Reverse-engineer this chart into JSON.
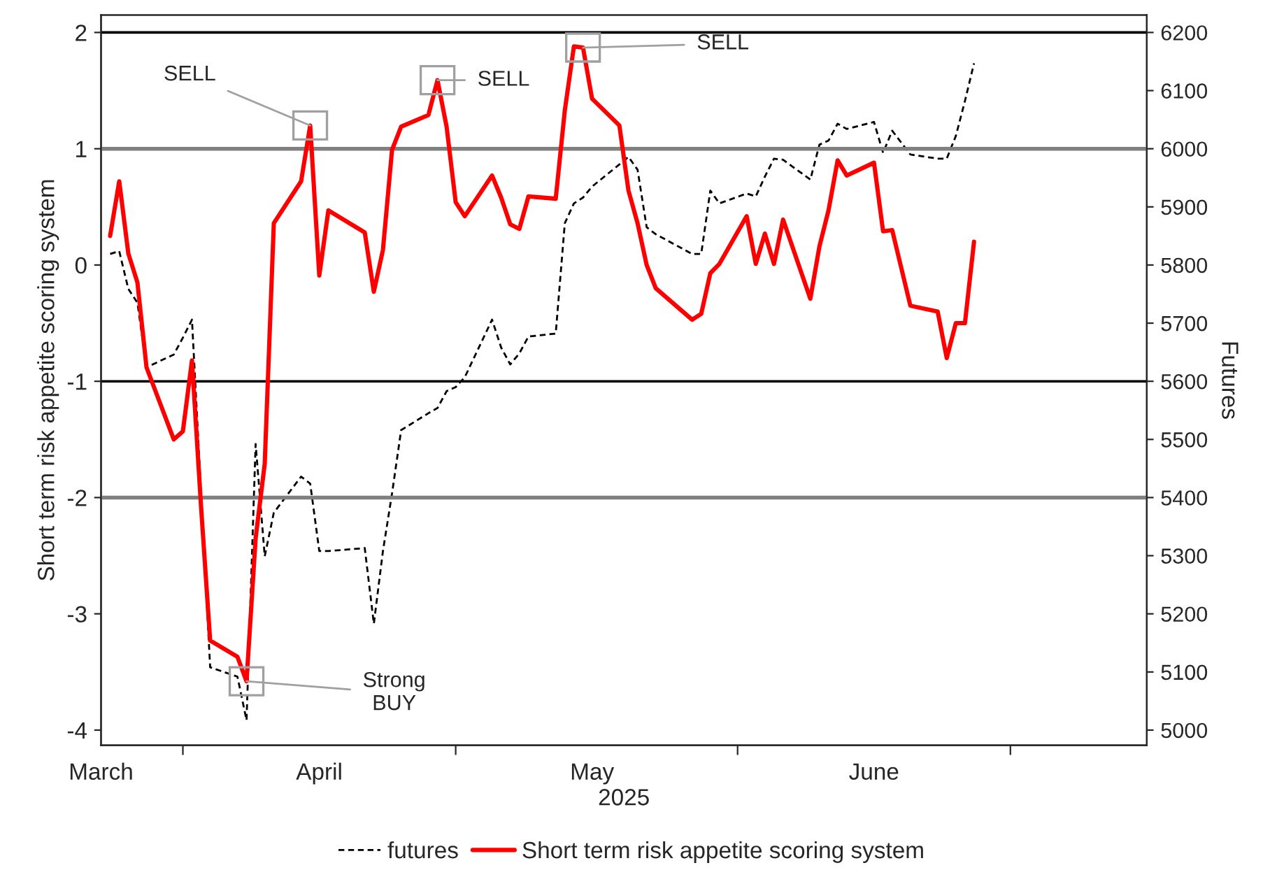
{
  "chart_data": {
    "type": "line",
    "x": [
      "2025-03-24",
      "2025-03-25",
      "2025-03-26",
      "2025-03-27",
      "2025-03-28",
      "2025-03-31",
      "2025-04-01",
      "2025-04-02",
      "2025-04-03",
      "2025-04-04",
      "2025-04-07",
      "2025-04-08",
      "2025-04-09",
      "2025-04-10",
      "2025-04-11",
      "2025-04-14",
      "2025-04-15",
      "2025-04-16",
      "2025-04-17",
      "2025-04-21",
      "2025-04-22",
      "2025-04-23",
      "2025-04-24",
      "2025-04-25",
      "2025-04-28",
      "2025-04-29",
      "2025-04-30",
      "2025-05-01",
      "2025-05-02",
      "2025-05-05",
      "2025-05-06",
      "2025-05-07",
      "2025-05-08",
      "2025-05-09",
      "2025-05-12",
      "2025-05-13",
      "2025-05-14",
      "2025-05-15",
      "2025-05-16",
      "2025-05-19",
      "2025-05-20",
      "2025-05-21",
      "2025-05-22",
      "2025-05-23",
      "2025-05-27",
      "2025-05-28",
      "2025-05-29",
      "2025-05-30",
      "2025-06-02",
      "2025-06-03",
      "2025-06-04",
      "2025-06-05",
      "2025-06-06",
      "2025-06-09",
      "2025-06-10",
      "2025-06-11",
      "2025-06-12",
      "2025-06-13",
      "2025-06-16",
      "2025-06-17",
      "2025-06-18",
      "2025-06-20",
      "2025-06-23",
      "2025-06-24",
      "2025-06-25",
      "2025-06-26",
      "2025-06-27"
    ],
    "series": [
      {
        "name": "futures",
        "color": "#000000",
        "axis": "y2",
        "line_style": "dashed",
        "values": [
          5819,
          5824,
          5759,
          5735,
          5624,
          5646,
          5675,
          5706,
          null,
          5108,
          5092,
          5017,
          5492,
          5299,
          5374,
          5436,
          5424,
          5308,
          5308,
          5313,
          5183,
          5308,
          5407,
          5516,
          5545,
          5554,
          5583,
          5590,
          5607,
          5706,
          5658,
          5629,
          5648,
          5677,
          5682,
          5872,
          5906,
          5916,
          5935,
          5973,
          5986,
          5964,
          5865,
          5853,
          5819,
          5819,
          5928,
          5906,
          5923,
          5918,
          5952,
          5983,
          5981,
          5947,
          6007,
          6014,
          6043,
          6034,
          6046,
          5993,
          6031,
          5990,
          5983,
          5983,
          6022,
          6082,
          6147
        ]
      },
      {
        "name": "Short term risk appetite scoring system",
        "color": "#ff0000",
        "axis": "y",
        "line_style": "solid",
        "values": [
          0.25,
          0.72,
          0.1,
          -0.15,
          -0.88,
          -1.5,
          -1.43,
          -0.82,
          -2.08,
          -3.23,
          -3.37,
          -3.58,
          -2.35,
          -1.71,
          0.36,
          0.72,
          1.2,
          -0.09,
          0.47,
          0.28,
          -0.23,
          0.13,
          0.99,
          1.19,
          1.29,
          1.59,
          1.19,
          0.54,
          0.42,
          0.77,
          0.58,
          0.35,
          0.31,
          0.59,
          0.57,
          1.33,
          1.88,
          1.87,
          1.43,
          1.2,
          0.64,
          0.36,
          0.0,
          -0.2,
          -0.47,
          -0.42,
          -0.07,
          0.01,
          0.42,
          0.01,
          0.27,
          0.01,
          0.39,
          -0.29,
          0.16,
          0.47,
          0.9,
          0.77,
          0.88,
          0.29,
          0.3,
          -0.35,
          -0.4,
          -0.8,
          -0.5,
          -0.5,
          0.2
        ]
      }
    ],
    "xlim": [
      "2025-03-23",
      "2025-07-16"
    ],
    "xticks": [
      {
        "value": "2025-03-23",
        "label": "March"
      },
      {
        "value": "2025-04-01",
        "label": null
      },
      {
        "value": "2025-04-16",
        "label": "April"
      },
      {
        "value": "2025-05-01",
        "label": null
      },
      {
        "value": "2025-05-16",
        "label": "May"
      },
      {
        "value": "2025-06-01",
        "label": null
      },
      {
        "value": "2025-06-16",
        "label": "June"
      },
      {
        "value": "2025-07-01",
        "label": null
      }
    ],
    "xlabel": "2025",
    "ylabel": "Short term risk appetite scoring system",
    "y2label": "Futures",
    "ylim": [
      -4.13,
      2.15
    ],
    "yticks": [
      -4,
      -3,
      -2,
      -1,
      0,
      1,
      2
    ],
    "y2lim": [
      4974,
      6230
    ],
    "y2ticks": [
      5000,
      5100,
      5200,
      5300,
      5400,
      5500,
      5600,
      5700,
      5800,
      5900,
      6000,
      6100,
      6200
    ],
    "ref_lines": [
      {
        "axis": "y",
        "value": 2,
        "label": null,
        "color": "#000000"
      },
      {
        "axis": "y",
        "value": 1,
        "label": null,
        "color": "#808080"
      },
      {
        "axis": "y",
        "value": -1,
        "label": null,
        "color": "#000000"
      },
      {
        "axis": "y",
        "value": -2,
        "label": null,
        "color": "#808080"
      }
    ],
    "annotations": [
      {
        "text": "SELL",
        "x": "2025-04-15",
        "y": 1.2
      },
      {
        "text": "SELL",
        "x": "2025-04-29",
        "y": 1.59
      },
      {
        "text": "SELL",
        "x": "2025-05-15",
        "y": 1.87
      },
      {
        "text": "Strong\nBUY",
        "x": "2025-04-08",
        "y": -3.58
      }
    ],
    "legend": "bottom",
    "grid": false,
    "marker": "none"
  }
}
